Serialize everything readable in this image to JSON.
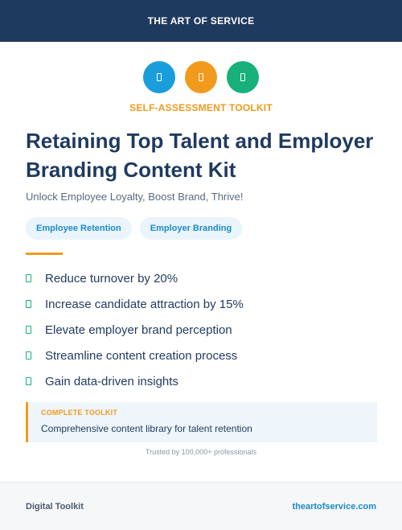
{
  "header": {
    "brand": "THE ART OF SERVICE"
  },
  "icons": [
    {
      "name": "document-icon",
      "color": "#1a9ddb"
    },
    {
      "name": "document-icon",
      "color": "#f29a1c"
    },
    {
      "name": "document-icon",
      "color": "#18b07b"
    }
  ],
  "kicker": "SELF-ASSESSMENT TOOLKIT",
  "title": "Retaining Top Talent and Employer Branding Content Kit",
  "subtitle": "Unlock Employee Loyalty, Boost Brand, Thrive!",
  "tags": [
    "Employee Retention",
    "Employer Branding"
  ],
  "benefits": [
    "Reduce turnover by 20%",
    "Increase candidate attraction by 15%",
    "Elevate employer brand perception",
    "Streamline content creation process",
    "Gain data-driven insights"
  ],
  "callout": {
    "label": "COMPLETE TOOLKIT",
    "text": "Comprehensive content library for talent retention"
  },
  "trusted": "Trusted by 100,000+ professionals",
  "footer": {
    "left": "Digital Toolkit",
    "right": "theartofservice.com"
  },
  "colors": {
    "navy": "#1f3a5f",
    "orange": "#f29a1c",
    "blue": "#1a9ddb",
    "green": "#18b07b"
  }
}
